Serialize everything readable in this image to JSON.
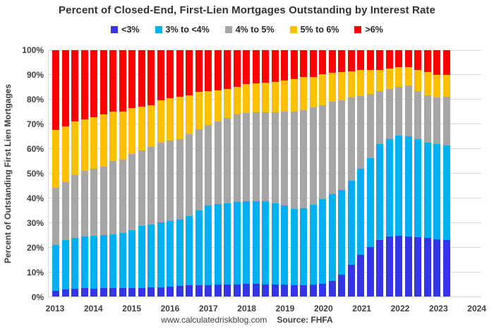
{
  "page": {
    "title": "Percent of Closed-End, First-Lien Mortgages Outstanding by Interest Rate",
    "footer": {
      "website": "www.calculatedriskblog.com",
      "source": "Source: FHFA"
    }
  },
  "chart_data": {
    "type": "bar",
    "stacked": true,
    "title": "Percent of Closed-End, First-Lien Mortgages Outstanding by Interest Rate",
    "xlabel": "",
    "ylabel": "Percent of Outstanding First Lien Mortgages",
    "ylim": [
      0,
      100
    ],
    "ytick_step": 10,
    "ytick_suffix": "%",
    "grid": "horizontal",
    "legend_position": "top",
    "x_year_labels": [
      "2013",
      "2014",
      "2015",
      "2016",
      "2017",
      "2018",
      "2019",
      "2020",
      "2021",
      "2022",
      "2023",
      "2024"
    ],
    "categories": [
      "2013 Q1",
      "2013 Q2",
      "2013 Q3",
      "2013 Q4",
      "2014 Q1",
      "2014 Q2",
      "2014 Q3",
      "2014 Q4",
      "2015 Q1",
      "2015 Q2",
      "2015 Q3",
      "2015 Q4",
      "2016 Q1",
      "2016 Q2",
      "2016 Q3",
      "2016 Q4",
      "2017 Q1",
      "2017 Q2",
      "2017 Q3",
      "2017 Q4",
      "2018 Q1",
      "2018 Q2",
      "2018 Q3",
      "2018 Q4",
      "2019 Q1",
      "2019 Q2",
      "2019 Q3",
      "2019 Q4",
      "2020 Q1",
      "2020 Q2",
      "2020 Q3",
      "2020 Q4",
      "2021 Q1",
      "2021 Q2",
      "2021 Q3",
      "2021 Q4",
      "2022 Q1",
      "2022 Q2",
      "2022 Q3",
      "2022 Q4",
      "2023 Q1",
      "2023 Q2"
    ],
    "series": [
      {
        "name": "<3%",
        "color": "#3634e8",
        "values": [
          2.4,
          3.0,
          3.2,
          3.3,
          3.2,
          3.3,
          3.3,
          3.5,
          3.5,
          3.5,
          3.7,
          3.8,
          4.0,
          4.3,
          4.5,
          4.7,
          4.7,
          4.9,
          5.0,
          5.0,
          5.1,
          5.1,
          5.0,
          5.0,
          4.9,
          4.7,
          4.7,
          5.0,
          5.2,
          6.4,
          8.8,
          12.8,
          17.0,
          20.0,
          22.8,
          24.3,
          24.7,
          24.3,
          24.0,
          23.7,
          23.3,
          23.0
        ]
      },
      {
        "name": "3% to <4%",
        "color": "#00b0f0",
        "values": [
          18.6,
          19.8,
          20.5,
          21.0,
          21.5,
          21.7,
          21.9,
          22.4,
          23.3,
          25.3,
          25.5,
          26.2,
          26.7,
          26.8,
          28.1,
          30.3,
          32.3,
          32.6,
          32.8,
          33.3,
          33.5,
          33.7,
          33.6,
          32.8,
          32.0,
          30.9,
          31.2,
          32.3,
          34.3,
          35.2,
          34.5,
          34.1,
          34.8,
          36.1,
          39.0,
          39.7,
          40.7,
          40.7,
          40.0,
          38.9,
          38.5,
          38.2
        ]
      },
      {
        "name": "4% to 5%",
        "color": "#a6a6a6",
        "values": [
          23.0,
          23.6,
          25.5,
          26.8,
          27.3,
          27.6,
          29.7,
          29.8,
          31.2,
          30.4,
          31.5,
          32.6,
          32.6,
          32.9,
          33.3,
          32.8,
          32.7,
          33.6,
          34.8,
          35.7,
          35.9,
          35.9,
          36.1,
          36.9,
          38.1,
          39.4,
          39.7,
          39.4,
          38.1,
          37.4,
          36.4,
          34.0,
          29.6,
          26.2,
          21.7,
          20.3,
          19.6,
          20.6,
          19.5,
          19.2,
          19.1,
          19.8
        ]
      },
      {
        "name": "5% to 6%",
        "color": "#ffc000",
        "values": [
          23.5,
          22.6,
          21.8,
          20.9,
          20.8,
          21.4,
          20.1,
          19.4,
          18.5,
          17.8,
          16.9,
          17.1,
          17.2,
          17.1,
          15.9,
          15.2,
          13.8,
          12.6,
          11.7,
          11.0,
          11.7,
          11.9,
          12.2,
          12.4,
          12.8,
          13.3,
          13.4,
          12.5,
          12.6,
          11.7,
          11.3,
          10.4,
          10.5,
          9.8,
          8.6,
          8.3,
          8.0,
          7.4,
          8.4,
          9.2,
          9.1,
          9.0
        ]
      },
      {
        "name": ">6%",
        "color": "#ff0000",
        "values": [
          32.5,
          31.0,
          29.0,
          28.0,
          27.2,
          26.0,
          25.0,
          24.9,
          23.5,
          23.0,
          22.4,
          20.3,
          19.5,
          18.9,
          18.2,
          17.0,
          16.5,
          16.3,
          15.7,
          15.0,
          13.8,
          13.4,
          13.1,
          12.9,
          12.2,
          11.7,
          11.0,
          10.8,
          9.8,
          9.3,
          9.0,
          8.7,
          8.1,
          7.9,
          7.9,
          7.4,
          7.0,
          7.0,
          8.1,
          9.0,
          10.0,
          10.0
        ]
      }
    ]
  }
}
